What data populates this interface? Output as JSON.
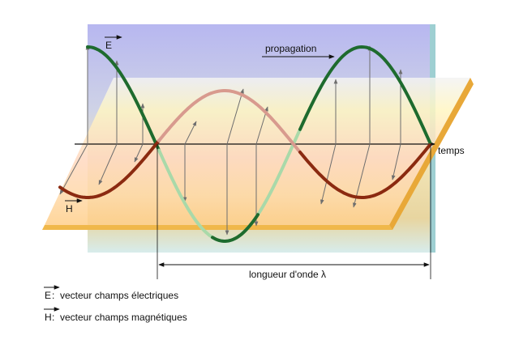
{
  "labels": {
    "e_field": "E",
    "h_field": "H",
    "propagation": "propagation",
    "time_axis": "temps",
    "wavelength": "longueur d'onde λ"
  },
  "legend": {
    "e_symbol": "E",
    "e_text": ":  vecteur champs électriques",
    "h_symbol": "H",
    "h_text": ":  vecteur champs magnétiques"
  },
  "colors": {
    "e_wave": "#1e6b2e",
    "e_wave_faded": "#a9d9a9",
    "h_wave": "#8b2a10",
    "h_wave_faded": "#d89a8e",
    "vertical_plane_top": "#b9b9f0",
    "horizontal_plane": "#ffe7a0",
    "vector": "#6e6e6e"
  }
}
